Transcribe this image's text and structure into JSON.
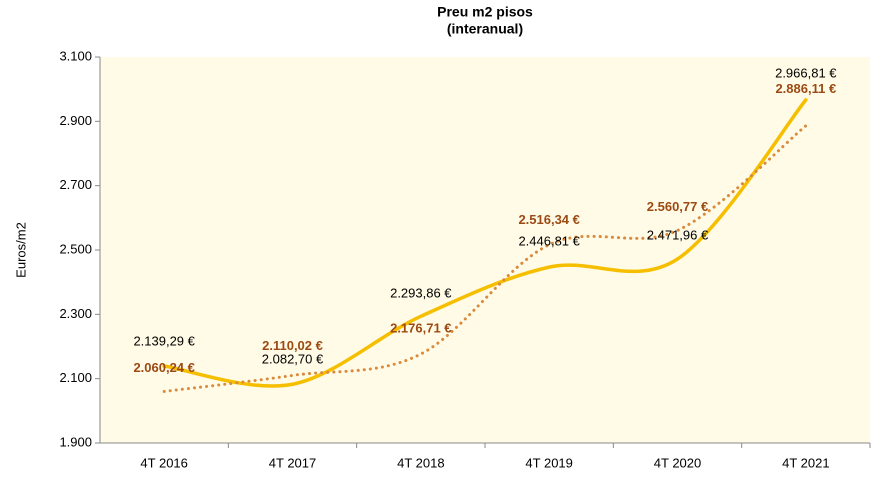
{
  "chart_data": {
    "type": "line",
    "title": "Preu m2 pisos",
    "subtitle": "(interanual)",
    "y_label": "Euros/m2",
    "categories": [
      "4T 2016",
      "4T 2017",
      "4T 2018",
      "4T 2019",
      "4T 2020",
      "4T 2021"
    ],
    "series": [
      {
        "color": "#f5bf00",
        "style": "solid",
        "values": [
          2139.29,
          2082.7,
          2293.86,
          2446.81,
          2471.96,
          2966.81
        ],
        "value_labels": [
          "2.139,29 €",
          "2.082,70 €",
          "2.293,86 €",
          "2.446,81 €",
          "2.471,96 €",
          "2.966,81 €"
        ]
      },
      {
        "color": "#d98a3d",
        "style": "dotted",
        "values": [
          2060.24,
          2110.02,
          2176.71,
          2516.34,
          2560.77,
          2886.11
        ],
        "value_labels": [
          "2.060,24 €",
          "2.110,02 €",
          "2.176,71 €",
          "2.516,34 €",
          "2.560,77 €",
          "2.886,11 €"
        ]
      }
    ],
    "ylim": [
      1900,
      3100
    ],
    "yticks": [
      {
        "value": 1900,
        "label": "1.900"
      },
      {
        "value": 2100,
        "label": "2.100"
      },
      {
        "value": 2300,
        "label": "2.300"
      },
      {
        "value": 2500,
        "label": "2.500"
      },
      {
        "value": 2700,
        "label": "2.700"
      },
      {
        "value": 2900,
        "label": "2.900"
      },
      {
        "value": 3100,
        "label": "3.100"
      }
    ]
  }
}
